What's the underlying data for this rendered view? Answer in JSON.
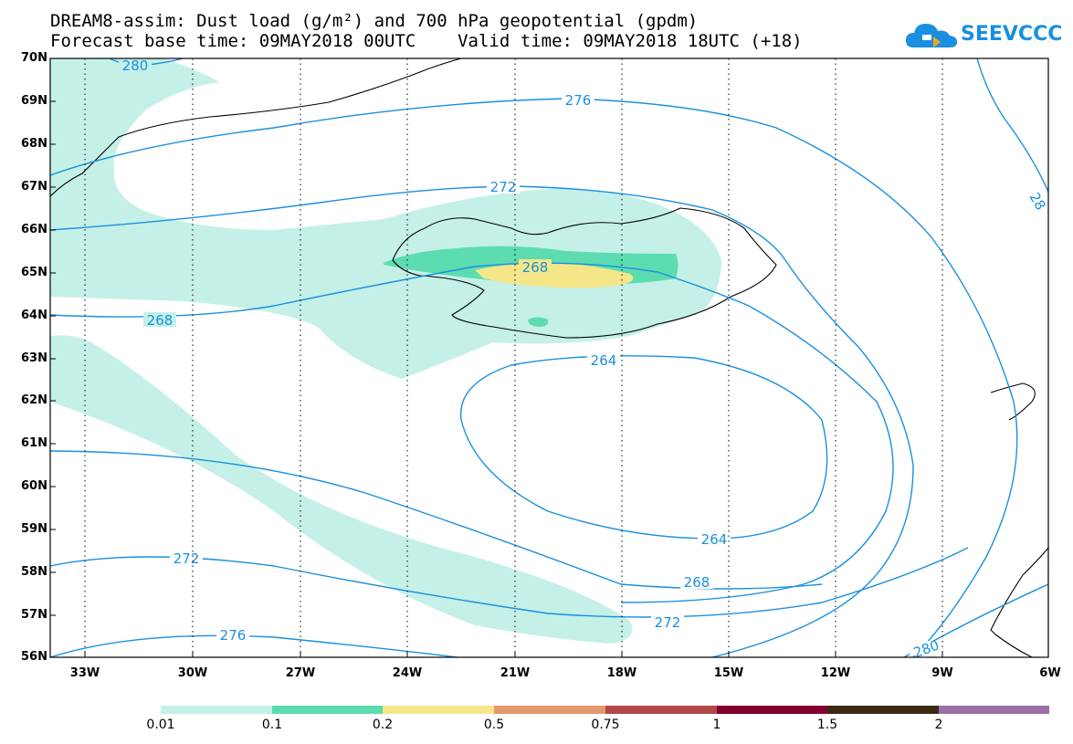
{
  "title": {
    "line1": "DREAM8-assim: Dust load (g/m²) and 700 hPa geopotential (gpdm)",
    "line2": "Forecast base time: 09MAY2018 00UTC    Valid time: 09MAY2018 18UTC (+18)"
  },
  "logo": {
    "text": "SEEVCCC",
    "icon": "cloud-icon",
    "color": "#1a8fe0"
  },
  "map": {
    "lat_labels": [
      "70N",
      "69N",
      "68N",
      "67N",
      "66N",
      "65N",
      "64N",
      "63N",
      "62N",
      "61N",
      "60N",
      "59N",
      "58N",
      "57N",
      "56N"
    ],
    "lon_labels": [
      "33W",
      "30W",
      "27W",
      "24W",
      "21W",
      "18W",
      "15W",
      "12W",
      "9W",
      "6W"
    ],
    "contour_color": "#1a8fe0",
    "contour_labels": [
      "280",
      "276",
      "272",
      "268",
      "264",
      "264",
      "268",
      "272",
      "268",
      "272",
      "276",
      "280",
      "28"
    ]
  },
  "colorbar": {
    "labels": [
      "0.01",
      "0.1",
      "0.2",
      "0.5",
      "0.75",
      "1",
      "1.5",
      "2"
    ],
    "colors": [
      "#c4f0e8",
      "#5ddcb0",
      "#f5e68a",
      "#e59870",
      "#b04848",
      "#800030",
      "#3a2a14",
      "#9a70a8"
    ]
  }
}
